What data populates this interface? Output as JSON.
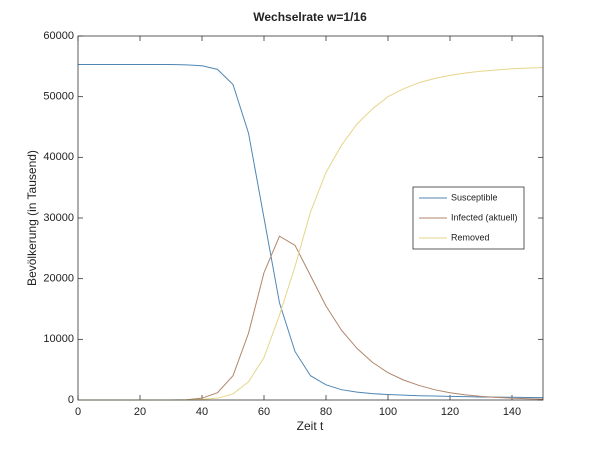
{
  "chart_data": {
    "type": "line",
    "title": "Wechselrate w=1/16",
    "xlabel": "Zeit t",
    "ylabel": "Bevölkerung (in Tausend)",
    "x": [
      0,
      5,
      10,
      15,
      20,
      25,
      30,
      35,
      40,
      45,
      50,
      55,
      60,
      65,
      70,
      75,
      80,
      85,
      90,
      95,
      100,
      105,
      110,
      115,
      120,
      125,
      130,
      135,
      140,
      145,
      150
    ],
    "series": [
      {
        "name": "Susceptible",
        "color": "#4f86b4",
        "values": [
          55300,
          55300,
          55300,
          55300,
          55300,
          55300,
          55300,
          55250,
          55100,
          54500,
          52000,
          44000,
          30000,
          16000,
          8000,
          4000,
          2500,
          1700,
          1300,
          1050,
          900,
          800,
          700,
          650,
          600,
          550,
          500,
          480,
          450,
          420,
          400
        ]
      },
      {
        "name": "Infected (aktuell)",
        "color": "#b0856a",
        "values": [
          0,
          0,
          0,
          0,
          0,
          0,
          0,
          50,
          300,
          1200,
          4000,
          11000,
          21000,
          27000,
          25500,
          20500,
          15500,
          11500,
          8500,
          6200,
          4500,
          3300,
          2400,
          1700,
          1200,
          850,
          600,
          430,
          300,
          210,
          150
        ]
      },
      {
        "name": "Removed",
        "color": "#e6d58a",
        "values": [
          0,
          0,
          0,
          0,
          0,
          0,
          0,
          20,
          100,
          300,
          1000,
          3000,
          7000,
          14000,
          22000,
          31000,
          37500,
          42000,
          45500,
          48000,
          50000,
          51300,
          52300,
          53000,
          53500,
          53900,
          54200,
          54400,
          54600,
          54700,
          54800
        ]
      }
    ],
    "xlim": [
      0,
      150
    ],
    "xticks": [
      0,
      20,
      40,
      60,
      80,
      100,
      120,
      140
    ],
    "ylim": [
      0,
      60000
    ],
    "yticks": [
      0,
      10000,
      20000,
      30000,
      40000,
      50000,
      60000
    ],
    "grid": false,
    "legend": "right"
  }
}
